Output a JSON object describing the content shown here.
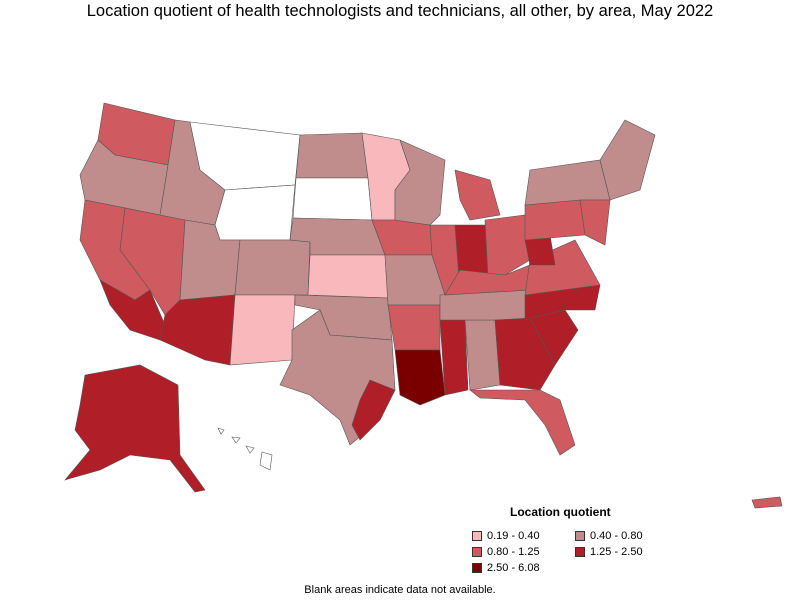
{
  "title": "Location quotient of health technologists and technicians, all other, by area, May 2022",
  "legend": {
    "title": "Location quotient",
    "items": [
      {
        "label": "0.19 - 0.40",
        "color": "#f9b8bb"
      },
      {
        "label": "0.40 - 0.80",
        "color": "#c08c8c"
      },
      {
        "label": "0.80 - 1.25",
        "color": "#cf5a5f"
      },
      {
        "label": "1.25 - 2.50",
        "color": "#b01f27"
      },
      {
        "label": "2.50 - 6.08",
        "color": "#7a0000"
      }
    ]
  },
  "footnote": "Blank areas indicate data not available.",
  "colors": {
    "blank": "#ffffff",
    "border": "#555555"
  }
}
